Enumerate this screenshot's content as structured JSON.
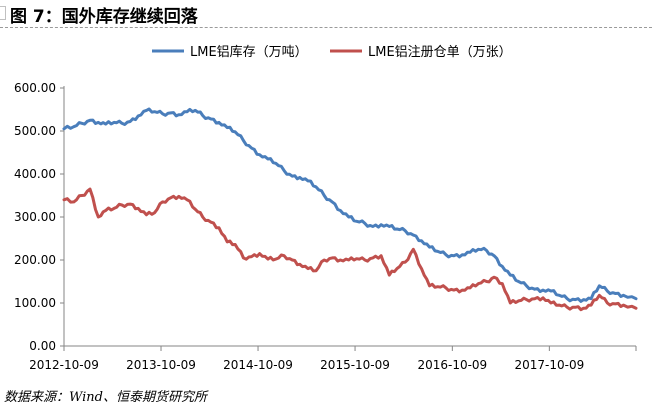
{
  "figure": {
    "title": "图 7：国外库存继续回落",
    "source": "数据来源：Wind、恒泰期货研究所"
  },
  "chart_data": {
    "type": "line",
    "title": "",
    "xlabel": "",
    "ylabel": "",
    "ylim": [
      0,
      600
    ],
    "yticks": [
      "0.00",
      "100.00",
      "200.00",
      "300.00",
      "400.00",
      "500.00",
      "600.00"
    ],
    "xticks": [
      "2012-10-09",
      "2013-10-09",
      "2014-10-09",
      "2015-10-09",
      "2016-10-09",
      "2017-10-09"
    ],
    "xlim": [
      "2012-10-09",
      "2018-08-31"
    ],
    "legend": "top",
    "grid": false,
    "series": [
      {
        "name": "LME铝库存（万吨）",
        "color": "#4a7ebb",
        "x": [
          "2012-10-09",
          "2012-11-15",
          "2012-12-15",
          "2013-01-15",
          "2013-02-15",
          "2013-03-15",
          "2013-04-15",
          "2013-05-15",
          "2013-06-15",
          "2013-07-15",
          "2013-08-15",
          "2013-09-15",
          "2013-10-15",
          "2013-11-15",
          "2013-12-15",
          "2014-01-15",
          "2014-02-15",
          "2014-03-15",
          "2014-04-15",
          "2014-05-15",
          "2014-06-15",
          "2014-07-15",
          "2014-08-15",
          "2014-09-15",
          "2014-10-15",
          "2014-11-15",
          "2014-12-15",
          "2015-01-15",
          "2015-02-15",
          "2015-03-15",
          "2015-04-15",
          "2015-05-15",
          "2015-06-15",
          "2015-07-15",
          "2015-08-15",
          "2015-09-15",
          "2015-10-15",
          "2015-11-15",
          "2015-12-15",
          "2016-01-15",
          "2016-02-15",
          "2016-03-15",
          "2016-04-15",
          "2016-05-15",
          "2016-06-15",
          "2016-07-15",
          "2016-08-15",
          "2016-09-15",
          "2016-10-15",
          "2016-11-15",
          "2016-12-15",
          "2017-01-15",
          "2017-02-15",
          "2017-03-15",
          "2017-04-15",
          "2017-05-15",
          "2017-06-15",
          "2017-07-15",
          "2017-08-15",
          "2017-09-15",
          "2017-10-15",
          "2017-11-15",
          "2017-12-15",
          "2018-01-15",
          "2018-02-15",
          "2018-03-15",
          "2018-04-15",
          "2018-05-15",
          "2018-06-15",
          "2018-07-15",
          "2018-08-31"
        ],
        "values": [
          505,
          510,
          518,
          525,
          520,
          516,
          520,
          518,
          522,
          535,
          548,
          545,
          540,
          542,
          538,
          545,
          548,
          536,
          528,
          520,
          508,
          498,
          478,
          460,
          445,
          435,
          425,
          408,
          395,
          392,
          384,
          370,
          350,
          335,
          315,
          300,
          290,
          285,
          278,
          282,
          278,
          272,
          268,
          258,
          245,
          230,
          220,
          212,
          210,
          212,
          218,
          225,
          222,
          210,
          185,
          165,
          150,
          140,
          132,
          130,
          128,
          118,
          110,
          108,
          108,
          110,
          140,
          128,
          122,
          118,
          110
        ]
      },
      {
        "name": "LME铝注册仓单（万张）",
        "color": "#c0504d",
        "x": [
          "2012-10-09",
          "2012-11-15",
          "2012-12-15",
          "2013-01-15",
          "2013-02-15",
          "2013-03-15",
          "2013-04-15",
          "2013-05-15",
          "2013-06-15",
          "2013-07-15",
          "2013-08-15",
          "2013-09-15",
          "2013-10-15",
          "2013-11-15",
          "2013-12-15",
          "2014-01-15",
          "2014-02-15",
          "2014-03-15",
          "2014-04-15",
          "2014-05-15",
          "2014-06-15",
          "2014-07-15",
          "2014-08-15",
          "2014-09-15",
          "2014-10-15",
          "2014-11-15",
          "2014-12-15",
          "2015-01-15",
          "2015-02-15",
          "2015-03-15",
          "2015-04-15",
          "2015-05-15",
          "2015-06-15",
          "2015-07-15",
          "2015-08-15",
          "2015-09-15",
          "2015-10-15",
          "2015-11-15",
          "2015-12-15",
          "2016-01-15",
          "2016-02-15",
          "2016-03-15",
          "2016-04-15",
          "2016-05-15",
          "2016-06-15",
          "2016-07-15",
          "2016-08-15",
          "2016-09-15",
          "2016-10-15",
          "2016-11-15",
          "2016-12-15",
          "2017-01-15",
          "2017-02-15",
          "2017-03-15",
          "2017-04-15",
          "2017-05-15",
          "2017-06-15",
          "2017-07-15",
          "2017-08-15",
          "2017-09-15",
          "2017-10-15",
          "2017-11-15",
          "2017-12-15",
          "2018-01-15",
          "2018-02-15",
          "2018-03-15",
          "2018-04-15",
          "2018-05-15",
          "2018-06-15",
          "2018-07-15",
          "2018-08-31"
        ],
        "values": [
          340,
          335,
          350,
          365,
          300,
          315,
          320,
          328,
          330,
          320,
          305,
          310,
          335,
          345,
          348,
          340,
          318,
          300,
          288,
          275,
          242,
          236,
          205,
          208,
          215,
          202,
          202,
          210,
          200,
          190,
          180,
          175,
          200,
          205,
          200,
          200,
          203,
          200,
          205,
          210,
          165,
          180,
          195,
          225,
          180,
          140,
          138,
          135,
          130,
          130,
          135,
          145,
          150,
          160,
          145,
          100,
          105,
          108,
          110,
          112,
          100,
          95,
          90,
          90,
          88,
          95,
          118,
          100,
          98,
          95,
          88
        ]
      }
    ]
  }
}
